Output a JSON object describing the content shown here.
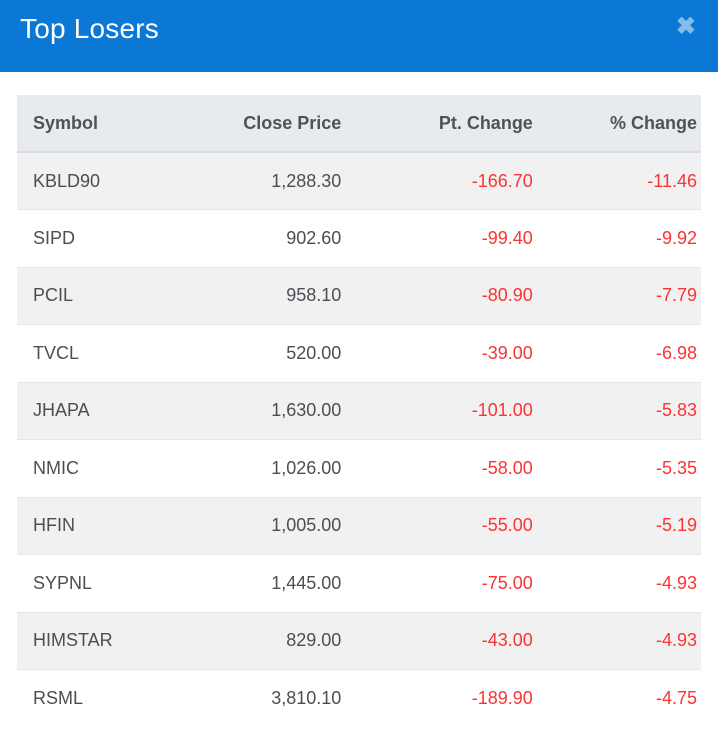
{
  "header": {
    "title": "Top Losers",
    "close_icon": "✖"
  },
  "colors": {
    "header_bg": "#0a78d4",
    "title_text": "#ffffff",
    "close_icon": "#87bce9",
    "table_head_bg": "#e8ebee",
    "row_alt_bg": "#f1f1f2",
    "row_bg": "#ffffff",
    "text": "#4a4f54",
    "negative": "#fa3434"
  },
  "table": {
    "columns": [
      "Symbol",
      "Close Price",
      "Pt. Change",
      "% Change"
    ],
    "rows": [
      {
        "symbol": "KBLD90",
        "close_price": "1,288.30",
        "pt_change": "-166.70",
        "pct_change": "-11.46"
      },
      {
        "symbol": "SIPD",
        "close_price": "902.60",
        "pt_change": "-99.40",
        "pct_change": "-9.92"
      },
      {
        "symbol": "PCIL",
        "close_price": "958.10",
        "pt_change": "-80.90",
        "pct_change": "-7.79"
      },
      {
        "symbol": "TVCL",
        "close_price": "520.00",
        "pt_change": "-39.00",
        "pct_change": "-6.98"
      },
      {
        "symbol": "JHAPA",
        "close_price": "1,630.00",
        "pt_change": "-101.00",
        "pct_change": "-5.83"
      },
      {
        "symbol": "NMIC",
        "close_price": "1,026.00",
        "pt_change": "-58.00",
        "pct_change": "-5.35"
      },
      {
        "symbol": "HFIN",
        "close_price": "1,005.00",
        "pt_change": "-55.00",
        "pct_change": "-5.19"
      },
      {
        "symbol": "SYPNL",
        "close_price": "1,445.00",
        "pt_change": "-75.00",
        "pct_change": "-4.93"
      },
      {
        "symbol": "HIMSTAR",
        "close_price": "829.00",
        "pt_change": "-43.00",
        "pct_change": "-4.93"
      },
      {
        "symbol": "RSML",
        "close_price": "3,810.10",
        "pt_change": "-189.90",
        "pct_change": "-4.75"
      }
    ]
  }
}
